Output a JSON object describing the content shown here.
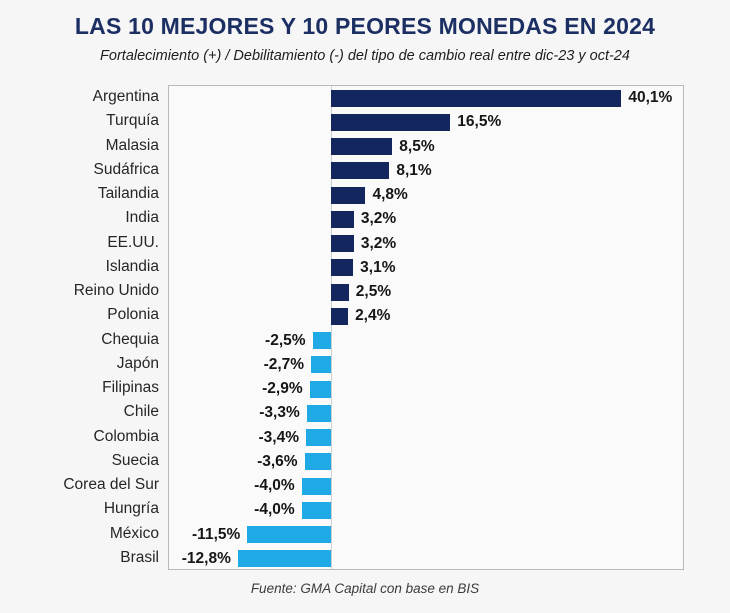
{
  "header": {
    "title": "LAS 10 MEJORES Y 10 PEORES MONEDAS EN 2024",
    "subtitle": "Fortalecimiento (+) / Debilitamiento (-) del tipo de cambio real entre dic-23 y oct-24"
  },
  "footer": {
    "source": "Fuente: GMA Capital con base en BIS"
  },
  "colors": {
    "positive_bar": "#14265e",
    "negative_bar": "#1faae5",
    "title_text": "#1c2f63",
    "plot_border": "#b9b9bc",
    "zero_line": "#cfcfd2",
    "page_background": "#f6f6f7"
  },
  "chart_data": {
    "type": "bar",
    "orientation": "horizontal",
    "title": "LAS 10 MEJORES Y 10 PEORES MONEDAS EN 2024",
    "subtitle": "Fortalecimiento (+) / Debilitamiento (-) del tipo de cambio real entre dic-23 y oct-24",
    "xlabel": "",
    "ylabel": "",
    "xlim": [
      -22.3,
      48.6
    ],
    "grid": false,
    "legend": false,
    "value_suffix": "%",
    "decimal_separator": ",",
    "categories": [
      "Argentina",
      "Turquía",
      "Malasia",
      "Sudáfrica",
      "Tailandia",
      "India",
      "EE.UU.",
      "Islandia",
      "Reino Unido",
      "Polonia",
      "Chequia",
      "Japón",
      "Filipinas",
      "Chile",
      "Colombia",
      "Suecia",
      "Corea del Sur",
      "Hungría",
      "México",
      "Brasil"
    ],
    "values": [
      40.1,
      16.5,
      8.5,
      8.1,
      4.8,
      3.2,
      3.2,
      3.1,
      2.5,
      2.4,
      -2.5,
      -2.7,
      -2.9,
      -3.3,
      -3.4,
      -3.6,
      -4.0,
      -4.0,
      -11.5,
      -12.8
    ],
    "value_labels": [
      "40,1%",
      "16,5%",
      "8,5%",
      "8,1%",
      "4,8%",
      "3,2%",
      "3,2%",
      "3,1%",
      "2,5%",
      "2,4%",
      "-2,5%",
      "-2,7%",
      "-2,9%",
      "-3,3%",
      "-3,4%",
      "-3,6%",
      "-4,0%",
      "-4,0%",
      "-11,5%",
      "-12,8%"
    ],
    "source_note": "Fuente: GMA Capital con base en BIS"
  }
}
